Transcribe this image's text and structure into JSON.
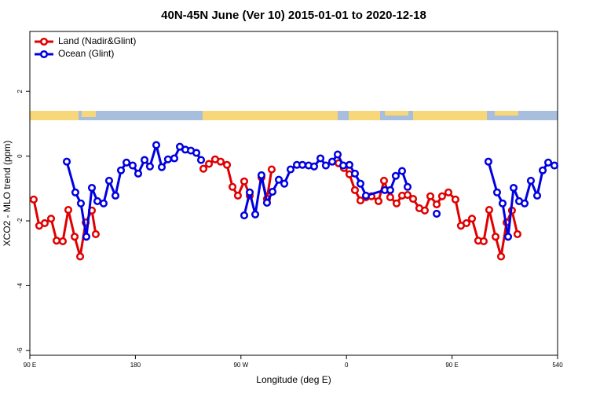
{
  "chart_data": {
    "type": "line",
    "title": "40N-45N June (Ver 10)   2015-01-01 to 2020-12-18",
    "x_label": "Longitude (deg E)",
    "y_label": "XCO2 - MLO trend (ppm)",
    "xlim": [
      90,
      540
    ],
    "xticks": [
      {
        "value": 90,
        "label": "90 E"
      },
      180,
      {
        "value": 270,
        "label": "90 W"
      },
      {
        "value": 360,
        "label": "0"
      },
      {
        "value": 450,
        "label": "90 E"
      },
      540
    ],
    "ylim": [
      -6.15,
      3.85
    ],
    "yticks": [
      -6,
      -4,
      -2,
      0,
      2
    ],
    "legend": "top-left",
    "series": [
      {
        "name": "Land (Nadir&Glint)",
        "color": "#e00000",
        "x": [
          93.3,
          98.0,
          102.7,
          108.1,
          112.8,
          118.1,
          122.8,
          128.2,
          132.9,
          137.6,
          142.9,
          146.2,
          null,
          238.0,
          242.7,
          248.0,
          252.7,
          258.1,
          262.8,
          267.4,
          272.8,
          277.5,
          null,
          287.5,
          292.2,
          296.2,
          null,
          353.2,
          357.8,
          362.5,
          367.2,
          371.9,
          376.6,
          381.3,
          387.3,
          392.0,
          397.3,
          402.7,
          407.4,
          412.1,
          416.8,
          422.1,
          426.8,
          431.5,
          436.9,
          441.5,
          446.9,
          452.9,
          457.6,
          462.3,
          467.0,
          472.3,
          477.0,
          481.7,
          487.1,
          491.8,
          496.5,
          501.1,
          505.8
        ],
        "values": [
          -1.34,
          -2.15,
          -2.07,
          -1.93,
          -2.61,
          -2.63,
          -1.66,
          -2.49,
          -3.1,
          -2.05,
          -1.68,
          -2.41,
          null,
          -0.39,
          -0.24,
          -0.1,
          -0.17,
          -0.27,
          -0.95,
          -1.22,
          -0.78,
          -1.22,
          null,
          -0.66,
          -1.32,
          -0.41,
          null,
          -0.22,
          -0.37,
          -0.56,
          -1.05,
          -1.37,
          -1.27,
          -1.24,
          -1.39,
          -0.76,
          -1.27,
          -1.46,
          -1.22,
          -1.2,
          -1.32,
          -1.61,
          -1.68,
          -1.24,
          -1.49,
          -1.24,
          -1.12,
          -1.34,
          -2.15,
          -2.07,
          -1.93,
          -2.61,
          -2.63,
          -1.66,
          -2.49,
          -3.1,
          -2.05,
          -1.68,
          -2.41
        ]
      },
      {
        "name": "Ocean (Glint)",
        "color": "#0000e0",
        "x": [
          121.5,
          128.8,
          133.5,
          138.2,
          142.9,
          147.6,
          152.9,
          157.6,
          163.0,
          167.7,
          172.4,
          177.7,
          182.4,
          187.8,
          192.4,
          197.8,
          202.5,
          207.8,
          213.2,
          217.9,
          222.6,
          227.3,
          232.0,
          236.0,
          null,
          272.8,
          277.5,
          282.2,
          287.5,
          292.2,
          296.9,
          302.3,
          307.0,
          312.3,
          317.7,
          322.4,
          327.7,
          332.4,
          337.8,
          342.4,
          347.8,
          352.5,
          357.2,
          362.5,
          367.2,
          371.9,
          376.6,
          392.7,
          397.3,
          402.0,
          407.4,
          412.1,
          null,
          436.9,
          null,
          481.0,
          488.4,
          493.1,
          497.8,
          502.5,
          507.2,
          511.9,
          517.2,
          522.6,
          527.3,
          532.0,
          537.3
        ],
        "values": [
          -0.17,
          -1.12,
          -1.46,
          -2.49,
          -0.98,
          -1.39,
          -1.46,
          -0.76,
          -1.22,
          -0.44,
          -0.2,
          -0.29,
          -0.54,
          -0.12,
          -0.32,
          0.34,
          -0.34,
          -0.1,
          -0.07,
          0.29,
          0.2,
          0.17,
          0.1,
          -0.12,
          null,
          -1.83,
          -1.12,
          -1.8,
          -0.59,
          -1.44,
          -1.1,
          -0.73,
          -0.85,
          -0.41,
          -0.27,
          -0.27,
          -0.29,
          -0.32,
          -0.07,
          -0.29,
          -0.17,
          0.05,
          -0.29,
          -0.27,
          -0.54,
          -0.85,
          -1.22,
          -1.05,
          -1.05,
          -0.61,
          -0.46,
          -0.95,
          null,
          -1.78,
          null,
          -0.17,
          -1.12,
          -1.46,
          -2.49,
          -0.98,
          -1.39,
          -1.46,
          -0.76,
          -1.22,
          -0.44,
          -0.2,
          -0.29
        ]
      }
    ]
  }
}
